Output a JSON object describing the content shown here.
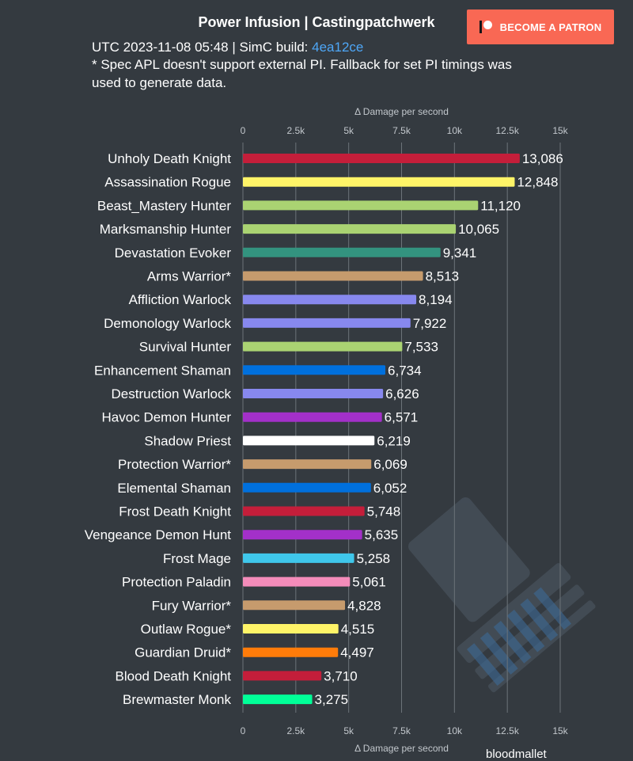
{
  "header": {
    "title": "Power Infusion | Castingpatchwerk",
    "patron_label": "BECOME A PATRON",
    "meta_prefix": "UTC 2023-11-08 05:48 | SimC build: ",
    "build_link": "4ea12ce",
    "note": "* Spec APL doesn't support external PI. Fallback for set PI timings was used to generate data."
  },
  "footer": {
    "text": "bloodmallet"
  },
  "chart_data": {
    "type": "bar",
    "orientation": "horizontal",
    "axis_title": "Δ Damage per second",
    "xlim": [
      0,
      15000
    ],
    "ticks": [
      0,
      2500,
      5000,
      7500,
      10000,
      12500,
      15000
    ],
    "tick_labels": [
      "0",
      "2.5k",
      "5k",
      "7.5k",
      "10k",
      "12.5k",
      "15k"
    ],
    "categories": [
      "Unholy Death Knight",
      "Assassination Rogue",
      "Beast_Mastery Hunter",
      "Marksmanship Hunter",
      "Devastation Evoker",
      "Arms Warrior*",
      "Affliction Warlock",
      "Demonology Warlock",
      "Survival Hunter",
      "Enhancement Shaman",
      "Destruction Warlock",
      "Havoc Demon Hunter",
      "Shadow Priest",
      "Protection Warrior*",
      "Elemental Shaman",
      "Frost Death Knight",
      "Vengeance Demon Hunt",
      "Frost Mage",
      "Protection Paladin",
      "Fury Warrior*",
      "Outlaw Rogue*",
      "Guardian Druid*",
      "Blood Death Knight",
      "Brewmaster Monk"
    ],
    "values": [
      13086,
      12848,
      11120,
      10065,
      9341,
      8513,
      8194,
      7922,
      7533,
      6734,
      6626,
      6571,
      6219,
      6069,
      6052,
      5748,
      5635,
      5258,
      5061,
      4828,
      4515,
      4497,
      3710,
      3275
    ],
    "value_labels": [
      "13,086",
      "12,848",
      "11,120",
      "10,065",
      "9,341",
      "8,513",
      "8,194",
      "7,922",
      "7,533",
      "6,734",
      "6,626",
      "6,571",
      "6,219",
      "6,069",
      "6,052",
      "5,748",
      "5,635",
      "5,258",
      "5,061",
      "4,828",
      "4,515",
      "4,497",
      "3,710",
      "3,275"
    ],
    "colors": [
      "#c41e3a",
      "#fff468",
      "#aad372",
      "#aad372",
      "#33937f",
      "#c69b6d",
      "#8788ee",
      "#8788ee",
      "#aad372",
      "#0070dd",
      "#8788ee",
      "#a330c9",
      "#ffffff",
      "#c69b6d",
      "#0070dd",
      "#c41e3a",
      "#a330c9",
      "#3fc7eb",
      "#f48cba",
      "#c69b6d",
      "#fff468",
      "#ff7c0a",
      "#c41e3a",
      "#00ff98"
    ],
    "grid": true
  }
}
